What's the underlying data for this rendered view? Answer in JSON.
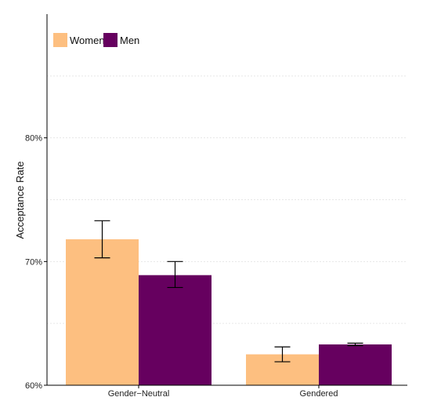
{
  "chart_data": {
    "type": "bar",
    "title": "",
    "xlabel": "",
    "ylabel": "Acceptance Rate",
    "categories": [
      "Gender−Neutral",
      "Gendered"
    ],
    "series": [
      {
        "name": "Women",
        "color": "#FDBF80",
        "values": [
          71.8,
          62.5
        ],
        "error_low": [
          70.3,
          61.9
        ],
        "error_high": [
          73.3,
          63.1
        ]
      },
      {
        "name": "Men",
        "color": "#66005F",
        "values": [
          68.9,
          63.3
        ],
        "error_low": [
          67.9,
          63.2
        ],
        "error_high": [
          70.0,
          63.4
        ]
      }
    ],
    "ylim": [
      60,
      90
    ],
    "yticks": [
      60,
      70,
      80
    ],
    "ytick_labels": [
      "60%",
      "70%",
      "80%"
    ],
    "minor_gridlines": [
      65,
      75,
      85
    ],
    "grid": true,
    "legend_position": "top-left"
  }
}
